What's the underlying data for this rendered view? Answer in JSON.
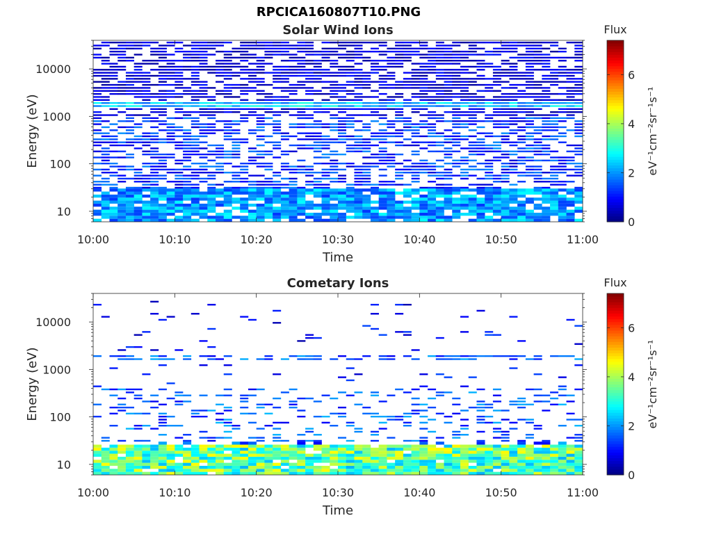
{
  "figure": {
    "filename": "RPCICA160807T10.PNG"
  },
  "colors": {
    "colormap": [
      "#00008f",
      "#0000ff",
      "#00ffff",
      "#ffff00",
      "#ff0000",
      "#800000"
    ]
  },
  "chart_data": [
    {
      "type": "heatmap",
      "title": "Solar Wind Ions",
      "xlabel": "Time",
      "ylabel": "Energy (eV)",
      "x_range": [
        "10:00",
        "11:00"
      ],
      "x_ticks": [
        "10:00",
        "10:10",
        "10:20",
        "10:30",
        "10:40",
        "10:50",
        "11:00"
      ],
      "y_scale": "log",
      "y_range": [
        6,
        40000
      ],
      "y_ticks": [
        10,
        100,
        1000,
        10000
      ],
      "y_tick_labels": [
        "10",
        "100",
        "1000",
        "10000"
      ],
      "colorbar": {
        "label_top": "Flux",
        "units": "eV⁻¹cm⁻²sr⁻¹s⁻¹",
        "range": [
          0,
          7.4
        ],
        "ticks": [
          0,
          2,
          4,
          6
        ],
        "tick_labels": [
          "0",
          "2",
          "4",
          "6"
        ]
      },
      "time_bins": 60,
      "features": [
        {
          "energy_range_eV": [
            6,
            30
          ],
          "typical_flux": 2.0,
          "note": "low-energy band, cyan"
        },
        {
          "energy_range_eV": [
            30,
            1000
          ],
          "typical_flux": 1.2,
          "note": "patchy blue"
        },
        {
          "energy_range_eV": [
            1700,
            2100
          ],
          "typical_flux": 2.2,
          "note": "solar wind proton line"
        },
        {
          "energy_range_eV": [
            2100,
            40000
          ],
          "typical_flux": 0.5,
          "note": "dark blue background"
        }
      ]
    },
    {
      "type": "heatmap",
      "title": "Cometary Ions",
      "xlabel": "Time",
      "ylabel": "Energy (eV)",
      "x_range": [
        "10:00",
        "11:00"
      ],
      "x_ticks": [
        "10:00",
        "10:10",
        "10:20",
        "10:30",
        "10:40",
        "10:50",
        "11:00"
      ],
      "y_scale": "log",
      "y_range": [
        6,
        40000
      ],
      "y_ticks": [
        10,
        100,
        1000,
        10000
      ],
      "y_tick_labels": [
        "10",
        "100",
        "1000",
        "10000"
      ],
      "colorbar": {
        "label_top": "Flux",
        "units": "eV⁻¹cm⁻²sr⁻¹s⁻¹",
        "range": [
          0,
          7.4
        ],
        "ticks": [
          0,
          2,
          4,
          6
        ],
        "tick_labels": [
          "0",
          "2",
          "4",
          "6"
        ]
      },
      "time_bins": 60,
      "features": [
        {
          "energy_range_eV": [
            6,
            28
          ],
          "typical_flux": 3.4,
          "note": "dense green-yellow low-energy band"
        },
        {
          "energy_range_eV": [
            28,
            400
          ],
          "typical_flux": 1.5,
          "note": "scattered blue"
        },
        {
          "energy_range_eV": [
            1700,
            2100
          ],
          "typical_flux": 1.4,
          "note": "intermittent line"
        },
        {
          "energy_range_eV": [
            2100,
            30000
          ],
          "typical_flux": 0.8,
          "note": "sparse isolated counts"
        }
      ]
    }
  ]
}
